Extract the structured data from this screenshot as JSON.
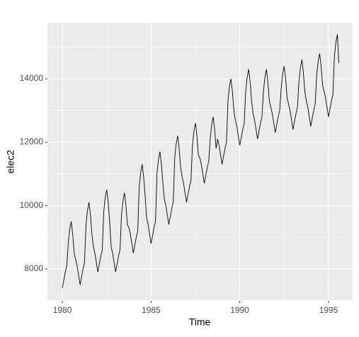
{
  "chart_data": {
    "type": "line",
    "x_label": "Time",
    "y_label": "elec2",
    "start": 1980,
    "frequency": 12,
    "series": [
      {
        "color": "#000000",
        "values": [
          7400,
          7650,
          7900,
          8100,
          8800,
          9250,
          9500,
          9100,
          8500,
          8300,
          8100,
          7800,
          7500,
          7750,
          8000,
          8200,
          9400,
          9850,
          10100,
          9700,
          9100,
          8700,
          8500,
          8200,
          7900,
          8150,
          8400,
          8600,
          9800,
          10250,
          10500,
          10100,
          9500,
          8700,
          8500,
          8200,
          7900,
          8150,
          8400,
          8600,
          9700,
          10150,
          10400,
          10000,
          9400,
          9300,
          9100,
          8800,
          8500,
          8750,
          9000,
          9200,
          10600,
          11050,
          11300,
          10900,
          10300,
          9600,
          9400,
          9100,
          8800,
          9050,
          9300,
          9500,
          11000,
          11450,
          11700,
          11300,
          10700,
          10200,
          10000,
          9700,
          9400,
          9650,
          9900,
          10100,
          11500,
          11950,
          12200,
          11800,
          11200,
          10900,
          10700,
          10400,
          10100,
          10350,
          10600,
          10800,
          11900,
          12350,
          12600,
          12200,
          11600,
          11500,
          11300,
          11000,
          10700,
          10950,
          11200,
          11400,
          12100,
          12550,
          12800,
          12400,
          11800,
          12100,
          11900,
          11600,
          11300,
          11550,
          11800,
          12000,
          13300,
          13750,
          14000,
          13600,
          13000,
          12700,
          12500,
          12200,
          11900,
          12150,
          12400,
          12600,
          13600,
          14050,
          14300,
          13900,
          13300,
          12900,
          12700,
          12400,
          12100,
          12350,
          12600,
          12800,
          13600,
          14050,
          14300,
          13900,
          13300,
          13100,
          12900,
          12600,
          12300,
          12550,
          12800,
          13000,
          13700,
          14150,
          14400,
          14000,
          13400,
          13200,
          13000,
          12700,
          12400,
          12650,
          12900,
          13100,
          13900,
          14350,
          14600,
          14200,
          13600,
          13300,
          13100,
          12800,
          12500,
          12750,
          13000,
          13200,
          14100,
          14550,
          14800,
          14400,
          13800,
          13600,
          13400,
          13100,
          12800,
          13050,
          13300,
          13500,
          14700,
          15150,
          15400,
          14500
        ]
      }
    ],
    "xlim": [
      1979.16,
      1996.36
    ],
    "xticks": [
      1980,
      1985,
      1990,
      1995
    ],
    "xminor": [
      1982.5,
      1987.5,
      1992.5
    ],
    "ylim": [
      6993,
      15769
    ],
    "yticks": [
      8000,
      10000,
      12000,
      14000
    ],
    "yminor": [
      7000,
      9000,
      11000,
      13000,
      15000
    ],
    "grid": true
  }
}
